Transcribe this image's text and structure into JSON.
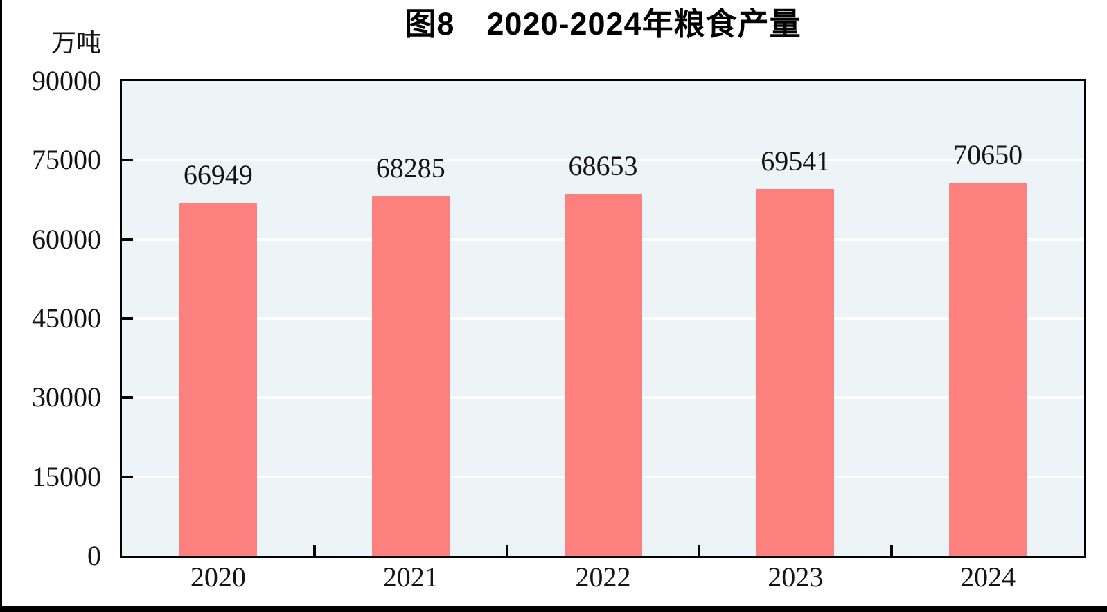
{
  "chart_data": {
    "type": "bar",
    "title": "图8　2020-2024年粮食产量",
    "unit_label": "万吨",
    "categories": [
      "2020",
      "2021",
      "2022",
      "2023",
      "2024"
    ],
    "values": [
      66949,
      68285,
      68653,
      69541,
      70650
    ],
    "ylim": [
      0,
      90000
    ],
    "yticks": [
      0,
      15000,
      30000,
      45000,
      60000,
      75000,
      90000
    ],
    "legend_position": "none",
    "grid": "horizontal",
    "colors": {
      "bar": "#fc817e",
      "plot_background": "#edf4f8",
      "gridline": "#ffffff",
      "axis": "#000000",
      "text": "#141414"
    }
  }
}
